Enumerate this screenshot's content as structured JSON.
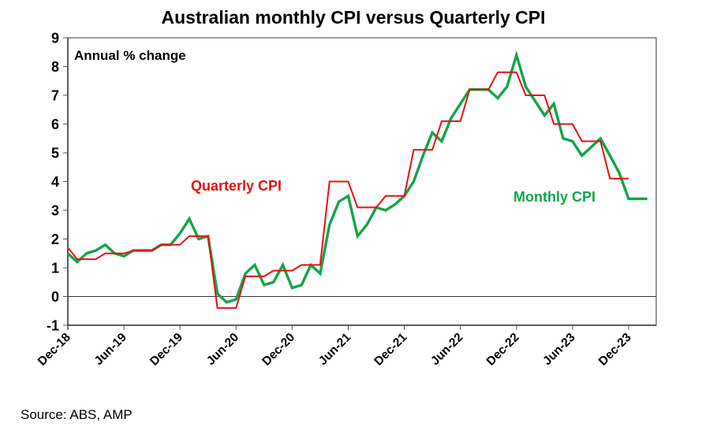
{
  "chart_data": {
    "type": "line",
    "title": "Australian monthly CPI versus Quarterly CPI",
    "ylabel": "Annual % change",
    "xlabel": "",
    "source": "Source: ABS, AMP",
    "ylim": [
      -1,
      9
    ],
    "yticks": [
      "-1",
      "0",
      "1",
      "2",
      "3",
      "4",
      "5",
      "6",
      "7",
      "8",
      "9"
    ],
    "x_start": "Dec-18",
    "x_end": "Mar-24",
    "xticks": [
      "Dec-18",
      "Jun-19",
      "Dec-19",
      "Jun-20",
      "Dec-20",
      "Jun-21",
      "Dec-21",
      "Jun-22",
      "Dec-22",
      "Jun-23",
      "Dec-23"
    ],
    "grid": false,
    "zero_line": true,
    "x": [
      "Dec-18",
      "Jan-19",
      "Feb-19",
      "Mar-19",
      "Apr-19",
      "May-19",
      "Jun-19",
      "Jul-19",
      "Aug-19",
      "Sep-19",
      "Oct-19",
      "Nov-19",
      "Dec-19",
      "Jan-20",
      "Feb-20",
      "Mar-20",
      "Apr-20",
      "May-20",
      "Jun-20",
      "Jul-20",
      "Aug-20",
      "Sep-20",
      "Oct-20",
      "Nov-20",
      "Dec-20",
      "Jan-21",
      "Feb-21",
      "Mar-21",
      "Apr-21",
      "May-21",
      "Jun-21",
      "Jul-21",
      "Aug-21",
      "Sep-21",
      "Oct-21",
      "Nov-21",
      "Dec-21",
      "Jan-22",
      "Feb-22",
      "Mar-22",
      "Apr-22",
      "May-22",
      "Jun-22",
      "Jul-22",
      "Aug-22",
      "Sep-22",
      "Oct-22",
      "Nov-22",
      "Dec-22",
      "Jan-23",
      "Feb-23",
      "Mar-23",
      "Apr-23",
      "May-23",
      "Jun-23",
      "Jul-23",
      "Aug-23",
      "Sep-23",
      "Oct-23",
      "Nov-23",
      "Dec-23",
      "Jan-24",
      "Feb-24"
    ],
    "series": [
      {
        "name": "Quarterly CPI",
        "color": "#e8100f",
        "values": [
          1.7,
          1.3,
          1.3,
          1.3,
          1.5,
          1.5,
          1.5,
          1.6,
          1.6,
          1.6,
          1.8,
          1.8,
          1.8,
          2.1,
          2.1,
          2.1,
          -0.4,
          -0.4,
          -0.4,
          0.7,
          0.7,
          0.7,
          0.9,
          0.9,
          0.9,
          1.1,
          1.1,
          1.1,
          4.0,
          4.0,
          4.0,
          3.1,
          3.1,
          3.1,
          3.5,
          3.5,
          3.5,
          5.1,
          5.1,
          5.1,
          6.1,
          6.1,
          6.1,
          7.2,
          7.2,
          7.2,
          7.8,
          7.8,
          7.8,
          7.0,
          7.0,
          7.0,
          6.0,
          6.0,
          6.0,
          5.4,
          5.4,
          5.4,
          4.1,
          4.1,
          4.1,
          null,
          null
        ]
      },
      {
        "name": "Monthly CPI",
        "color": "#13a44a",
        "values": [
          1.5,
          1.2,
          1.5,
          1.6,
          1.8,
          1.5,
          1.4,
          1.6,
          1.6,
          1.6,
          1.8,
          1.8,
          2.2,
          2.7,
          2.0,
          2.1,
          0.1,
          -0.2,
          -0.1,
          0.8,
          1.1,
          0.4,
          0.5,
          1.1,
          0.3,
          0.4,
          1.1,
          0.8,
          2.5,
          3.3,
          3.5,
          2.1,
          2.5,
          3.1,
          3.0,
          3.2,
          3.5,
          4.0,
          4.9,
          5.7,
          5.4,
          6.2,
          6.7,
          7.2,
          7.2,
          7.2,
          6.9,
          7.3,
          8.4,
          7.3,
          6.8,
          6.3,
          6.7,
          5.5,
          5.4,
          4.9,
          5.2,
          5.5,
          4.9,
          4.3,
          3.4,
          3.4,
          3.4
        ]
      }
    ],
    "annotations": [
      {
        "text": "Quarterly CPI",
        "series": "Quarterly CPI"
      },
      {
        "text": "Monthly CPI",
        "series": "Monthly CPI"
      }
    ]
  }
}
